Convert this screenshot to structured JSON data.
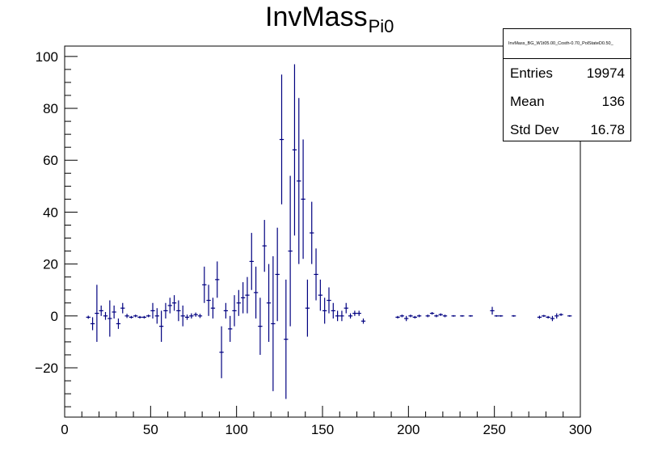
{
  "chart_data": {
    "type": "scatter",
    "title": "InvMass",
    "title_subscript": "Pi0",
    "xlabel": "",
    "ylabel": "",
    "xlim": [
      0,
      300
    ],
    "ylim": [
      -39,
      104
    ],
    "x_ticks": [
      0,
      50,
      100,
      150,
      200,
      250,
      300
    ],
    "y_ticks": [
      -20,
      0,
      20,
      40,
      60,
      80,
      100
    ],
    "bin_width": 2.5,
    "marker_color": "#000080",
    "grid": false,
    "points": [
      {
        "x": 13.75,
        "y": -0.5,
        "err": 0.6
      },
      {
        "x": 16.25,
        "y": -3,
        "err": 2.5
      },
      {
        "x": 18.75,
        "y": 1,
        "err": 11
      },
      {
        "x": 21.25,
        "y": 2,
        "err": 2
      },
      {
        "x": 23.75,
        "y": 0,
        "err": 1.5
      },
      {
        "x": 26.25,
        "y": -1,
        "err": 7
      },
      {
        "x": 28.75,
        "y": 1.5,
        "err": 2.5
      },
      {
        "x": 31.25,
        "y": -3,
        "err": 2
      },
      {
        "x": 33.75,
        "y": 3,
        "err": 2
      },
      {
        "x": 36.25,
        "y": 0,
        "err": 0.8
      },
      {
        "x": 38.75,
        "y": -0.5,
        "err": 0.5
      },
      {
        "x": 41.25,
        "y": 0,
        "err": 0.5
      },
      {
        "x": 43.75,
        "y": -0.5,
        "err": 0.5
      },
      {
        "x": 46.25,
        "y": -0.5,
        "err": 0.5
      },
      {
        "x": 48.75,
        "y": 0,
        "err": 0.5
      },
      {
        "x": 51.25,
        "y": 2,
        "err": 3
      },
      {
        "x": 53.75,
        "y": 0,
        "err": 3
      },
      {
        "x": 56.25,
        "y": -4,
        "err": 6
      },
      {
        "x": 58.75,
        "y": 2,
        "err": 3
      },
      {
        "x": 61.25,
        "y": 4,
        "err": 3
      },
      {
        "x": 63.75,
        "y": 5,
        "err": 3
      },
      {
        "x": 66.25,
        "y": 2,
        "err": 4
      },
      {
        "x": 68.75,
        "y": 0,
        "err": 4
      },
      {
        "x": 71.25,
        "y": -0.5,
        "err": 1
      },
      {
        "x": 73.75,
        "y": 0,
        "err": 1
      },
      {
        "x": 76.25,
        "y": 0.5,
        "err": 0.8
      },
      {
        "x": 78.75,
        "y": 0,
        "err": 0.8
      },
      {
        "x": 81.25,
        "y": 12,
        "err": 7
      },
      {
        "x": 83.75,
        "y": 6,
        "err": 6
      },
      {
        "x": 86.25,
        "y": 3,
        "err": 4
      },
      {
        "x": 88.75,
        "y": 14,
        "err": 7
      },
      {
        "x": 91.25,
        "y": -14,
        "err": 10
      },
      {
        "x": 93.75,
        "y": 2,
        "err": 3
      },
      {
        "x": 96.25,
        "y": -5,
        "err": 5
      },
      {
        "x": 98.75,
        "y": 2,
        "err": 6
      },
      {
        "x": 101.25,
        "y": 5,
        "err": 5
      },
      {
        "x": 103.75,
        "y": 7,
        "err": 6
      },
      {
        "x": 106.25,
        "y": 8,
        "err": 7
      },
      {
        "x": 108.75,
        "y": 21,
        "err": 11
      },
      {
        "x": 111.25,
        "y": 9,
        "err": 10
      },
      {
        "x": 113.75,
        "y": -4,
        "err": 11
      },
      {
        "x": 116.25,
        "y": 27,
        "err": 10
      },
      {
        "x": 118.75,
        "y": 5,
        "err": 15
      },
      {
        "x": 121.25,
        "y": -3,
        "err": 26
      },
      {
        "x": 123.75,
        "y": 16,
        "err": 18
      },
      {
        "x": 126.25,
        "y": 68,
        "err": 25
      },
      {
        "x": 128.75,
        "y": -9,
        "err": 23
      },
      {
        "x": 131.25,
        "y": 25,
        "err": 29
      },
      {
        "x": 133.75,
        "y": 64,
        "err": 33
      },
      {
        "x": 136.25,
        "y": 52,
        "err": 32
      },
      {
        "x": 138.75,
        "y": 45,
        "err": 23
      },
      {
        "x": 141.25,
        "y": 3,
        "err": 11
      },
      {
        "x": 143.75,
        "y": 32,
        "err": 12
      },
      {
        "x": 146.25,
        "y": 16,
        "err": 10
      },
      {
        "x": 148.75,
        "y": 8,
        "err": 6
      },
      {
        "x": 151.25,
        "y": 2,
        "err": 5
      },
      {
        "x": 153.75,
        "y": 6,
        "err": 5
      },
      {
        "x": 156.25,
        "y": 2,
        "err": 3
      },
      {
        "x": 158.75,
        "y": 0,
        "err": 2
      },
      {
        "x": 161.25,
        "y": 0,
        "err": 2
      },
      {
        "x": 163.75,
        "y": 3,
        "err": 2
      },
      {
        "x": 166.25,
        "y": 0,
        "err": 1
      },
      {
        "x": 168.75,
        "y": 1,
        "err": 1
      },
      {
        "x": 171.25,
        "y": 1,
        "err": 1
      },
      {
        "x": 173.75,
        "y": -2,
        "err": 1
      },
      {
        "x": 193.75,
        "y": -0.5,
        "err": 0.5
      },
      {
        "x": 196.25,
        "y": 0,
        "err": 0.5
      },
      {
        "x": 198.75,
        "y": -1,
        "err": 1
      },
      {
        "x": 201.25,
        "y": 0,
        "err": 0.5
      },
      {
        "x": 203.75,
        "y": -0.5,
        "err": 0.5
      },
      {
        "x": 206.25,
        "y": 0,
        "err": 0.5
      },
      {
        "x": 211.25,
        "y": 0,
        "err": 0.5
      },
      {
        "x": 213.75,
        "y": 1,
        "err": 0.5
      },
      {
        "x": 216.25,
        "y": 0,
        "err": 0.5
      },
      {
        "x": 218.75,
        "y": 0.5,
        "err": 0.5
      },
      {
        "x": 221.25,
        "y": 0,
        "err": 0.5
      },
      {
        "x": 226.25,
        "y": 0,
        "err": 0.3
      },
      {
        "x": 231.25,
        "y": 0,
        "err": 0.3
      },
      {
        "x": 236.25,
        "y": 0,
        "err": 0.3
      },
      {
        "x": 248.75,
        "y": 2,
        "err": 1.5
      },
      {
        "x": 251.25,
        "y": 0,
        "err": 0.3
      },
      {
        "x": 253.75,
        "y": 0,
        "err": 0.3
      },
      {
        "x": 261.25,
        "y": 0,
        "err": 0.3
      },
      {
        "x": 276.25,
        "y": -0.5,
        "err": 0.6
      },
      {
        "x": 278.75,
        "y": 0,
        "err": 0.4
      },
      {
        "x": 281.25,
        "y": -0.5,
        "err": 0.5
      },
      {
        "x": 283.75,
        "y": -1,
        "err": 1
      },
      {
        "x": 286.25,
        "y": 0,
        "err": 1
      },
      {
        "x": 288.75,
        "y": 0.5,
        "err": 0.5
      },
      {
        "x": 293.75,
        "y": 0,
        "err": 0.3
      }
    ]
  },
  "stats": {
    "name": "InvMass_BG_W1t05.00_Costh-0.70_PolStateD0.50_",
    "entries_label": "Entries",
    "entries_value": "19974",
    "mean_label": "Mean",
    "mean_value": "136",
    "stddev_label": "Std Dev",
    "stddev_value": "16.78"
  }
}
